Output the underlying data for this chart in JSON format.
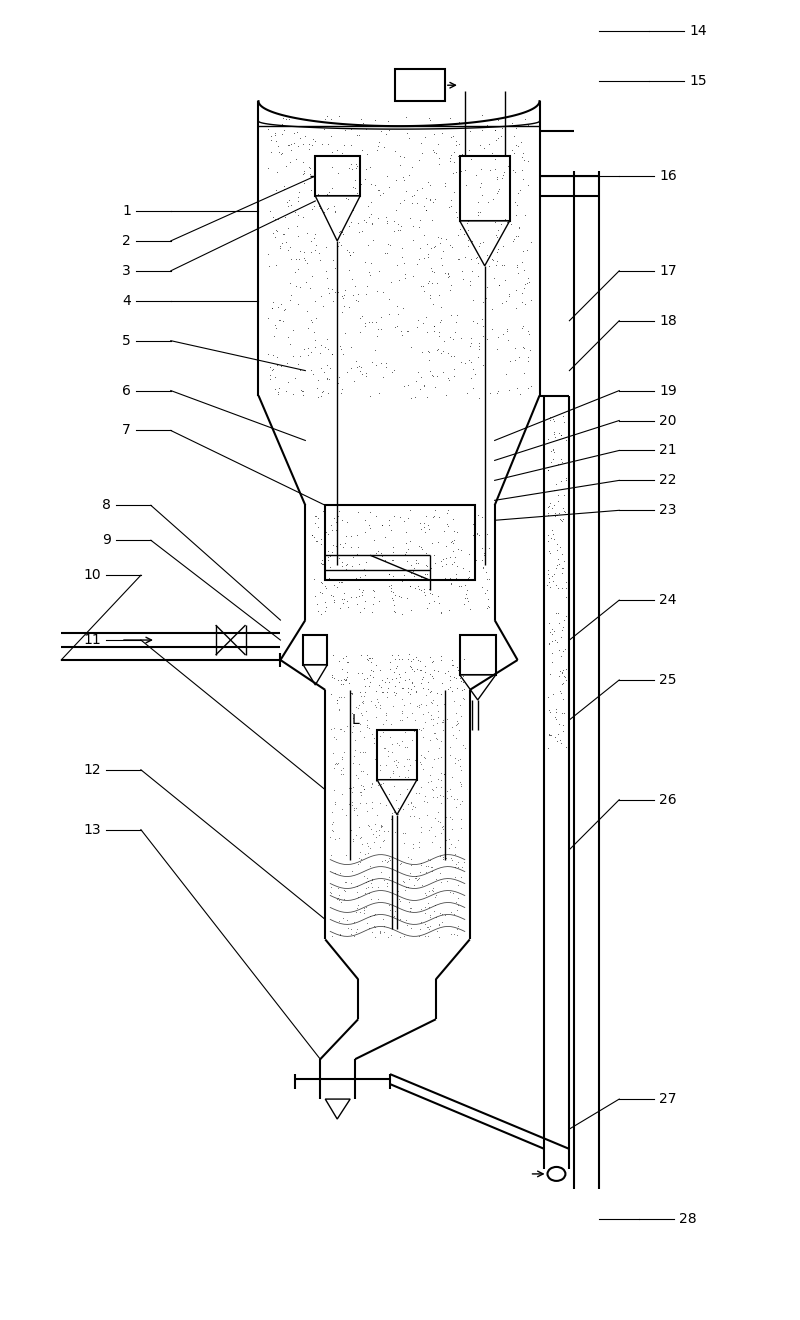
{
  "bg_color": "#ffffff",
  "lw_main": 1.5,
  "lw_thin": 1.0,
  "lw_label": 0.8,
  "fig_width": 8.0,
  "fig_height": 13.2,
  "label_fs": 10
}
